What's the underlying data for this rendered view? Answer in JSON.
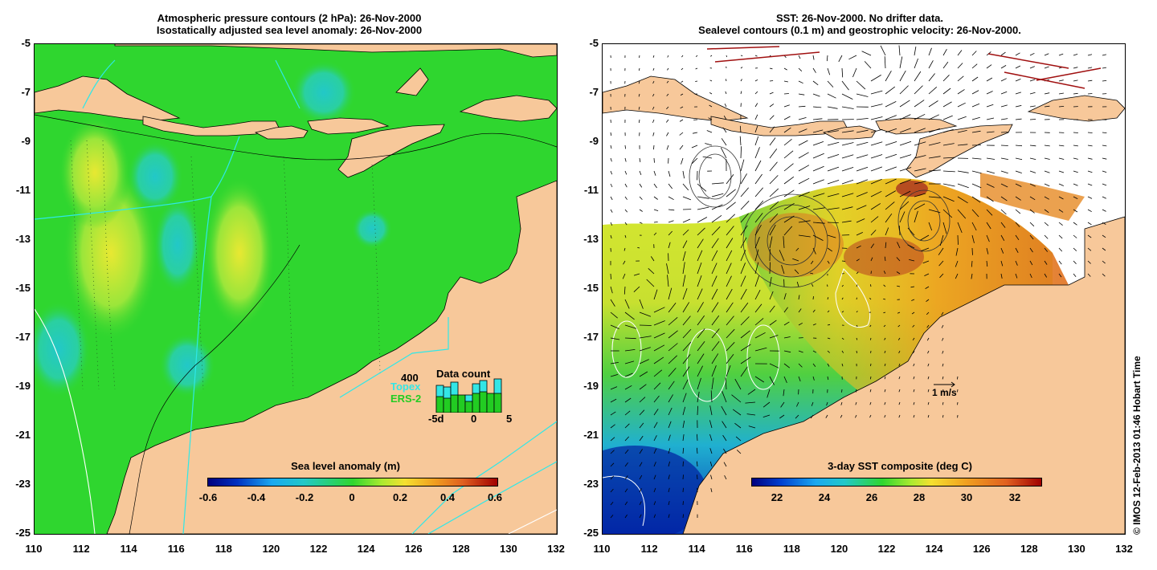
{
  "left_panel": {
    "title_line1": "Atmospheric pressure contours (2 hPa): 26-Nov-2000",
    "title_line2": "Isostatically adjusted sea level anomaly: 26-Nov-2000",
    "colorbar_title": "Sea level anomaly (m)",
    "colorbar_ticks": [
      "-0.6",
      "-0.4",
      "-0.2",
      "0",
      "0.2",
      "0.4",
      "0.6"
    ],
    "data_count": {
      "title": "Data count",
      "max_label": "400",
      "topex_label": "Topex",
      "ers2_label": "ERS-2",
      "x_labels": [
        "-5d",
        "0",
        "5"
      ],
      "topex_color": "#33e6e6",
      "ers2_color": "#22cc22"
    }
  },
  "right_panel": {
    "title_line1": "SST: 26-Nov-2000. No drifter data.",
    "title_line2": "Sealevel contours (0.1 m) and geostrophic velocity: 26-Nov-2000.",
    "colorbar_title": "3-day SST composite (deg C)",
    "colorbar_ticks": [
      "22",
      "24",
      "26",
      "28",
      "30",
      "32"
    ],
    "velocity_scale_label": "1 m/s"
  },
  "axes": {
    "y_ticks": [
      "-5",
      "-7",
      "-9",
      "-11",
      "-13",
      "-15",
      "-17",
      "-19",
      "-21",
      "-23",
      "-25"
    ],
    "x_ticks": [
      "110",
      "112",
      "114",
      "116",
      "118",
      "120",
      "122",
      "124",
      "126",
      "128",
      "130",
      "132"
    ]
  },
  "colors": {
    "land": "#f7c89a",
    "ocean_anomaly_base": "#2fd62f",
    "coast": "#000000",
    "contour_cyan": "#2ee8e8"
  },
  "copyright": "© IMOS 12-Feb-2013 01:46 Hobart Time"
}
